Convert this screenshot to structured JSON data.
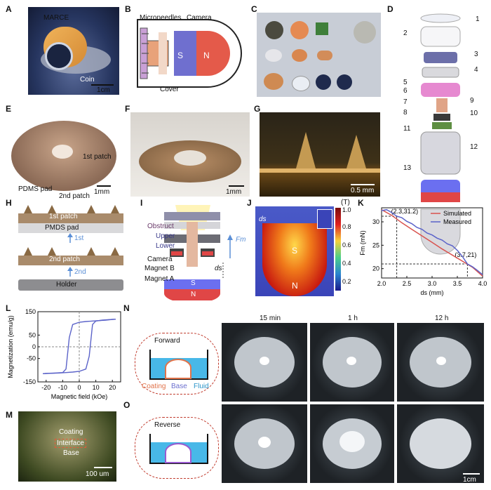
{
  "panels": {
    "A": {
      "letter": "A",
      "marce": "MARCE",
      "coin": "Coin",
      "scale": "1cm"
    },
    "B": {
      "letter": "B",
      "microneedles": "Microneedles",
      "camera": "Camera",
      "s": "S",
      "n": "N",
      "cover": "Cover"
    },
    "C": {
      "letter": "C"
    },
    "D": {
      "letter": "D",
      "parts": [
        "1",
        "2",
        "3",
        "4",
        "5",
        "6",
        "7",
        "8",
        "9",
        "10",
        "11",
        "12",
        "13"
      ]
    },
    "E": {
      "letter": "E",
      "patch1": "1st patch",
      "patch2": "2nd patch",
      "pdms": "PDMS pad",
      "scale": "1mm"
    },
    "F": {
      "letter": "F",
      "scale": "1mm"
    },
    "G": {
      "letter": "G",
      "scale": "0.5 mm"
    },
    "H": {
      "letter": "H",
      "patch1": "1st patch",
      "pmds": "PMDS pad",
      "step1": "1st",
      "patch2": "2nd patch",
      "step2": "2nd",
      "holder": "Holder"
    },
    "I": {
      "letter": "I",
      "obstruct": "Obstruct",
      "upper": "Upper",
      "lower": "Lower",
      "camera": "Camera",
      "magnetB": "Magnet B",
      "magnetA": "Magnet A",
      "s": "S",
      "n": "N",
      "fm": "Fm",
      "ds": "ds"
    },
    "J": {
      "letter": "J",
      "ds": "ds",
      "s": "S",
      "n": "N",
      "unit": "(T)",
      "colorbar_ticks": [
        "1.0",
        "0.8",
        "0.6",
        "0.4",
        "0.2"
      ]
    },
    "M": {
      "letter": "M",
      "coating": "Coating",
      "interface": "Interface",
      "base": "Base",
      "scale": "100 um"
    },
    "N": {
      "letter": "N",
      "mode": "Forward",
      "times": [
        "15 min",
        "1 h",
        "12 h"
      ],
      "coating": "Coating",
      "base": "Base",
      "fluid": "Fluid"
    },
    "O": {
      "letter": "O",
      "mode": "Reverse",
      "scale": "1cm"
    }
  },
  "chart_data": [
    {
      "panel": "K",
      "type": "line",
      "xlabel": "ds (mm)",
      "ylabel": "Fm (mN)",
      "xlim": [
        2.0,
        4.0
      ],
      "ylim": [
        18,
        33
      ],
      "xticks": [
        "2.0",
        "2.5",
        "3.0",
        "3.5",
        "4.0"
      ],
      "yticks": [
        "20",
        "25",
        "30"
      ],
      "legend": "top-right",
      "series": [
        {
          "name": "Simulated",
          "color": "#d9534f",
          "x": [
            2.0,
            2.2,
            2.4,
            2.6,
            2.8,
            3.0,
            3.2,
            3.4,
            3.6,
            3.8,
            4.0
          ],
          "y": [
            32.6,
            31.4,
            29.8,
            28.4,
            27.0,
            25.6,
            24.2,
            22.9,
            21.6,
            20.3,
            18.4
          ]
        },
        {
          "name": "Measured",
          "color": "#5b63c9",
          "x": [
            2.0,
            2.1,
            2.2,
            2.3,
            2.4,
            2.5,
            2.6,
            2.7,
            2.8,
            2.9,
            3.0,
            3.1,
            3.2,
            3.3,
            3.4,
            3.5,
            3.6,
            3.7,
            3.8,
            3.9,
            4.0
          ],
          "y": [
            32.4,
            32.6,
            32.0,
            31.2,
            30.9,
            30.1,
            29.6,
            28.8,
            28.4,
            27.6,
            27.2,
            26.5,
            26.1,
            25.3,
            24.9,
            23.9,
            22.6,
            21.0,
            20.4,
            19.6,
            18.7
          ]
        }
      ],
      "annotations": [
        {
          "label": "(2.3,31.2)",
          "x": 2.3,
          "y": 31.2
        },
        {
          "label": "(3.7,21)",
          "x": 3.7,
          "y": 21
        }
      ]
    },
    {
      "panel": "L",
      "type": "line",
      "xlabel": "Magnetic field (kOe)",
      "ylabel": "Magnetization (emu/g)",
      "xlim": [
        -25,
        25
      ],
      "ylim": [
        -150,
        150
      ],
      "xticks": [
        "-20",
        "-10",
        "0",
        "10",
        "20"
      ],
      "yticks": [
        "150",
        "50",
        "0",
        "-50",
        "-150"
      ],
      "series": [
        {
          "x": [
            -22,
            -18,
            -14,
            -10,
            -8,
            -6,
            -4,
            0,
            4,
            8,
            12,
            16,
            20,
            22,
            20
          ],
          "y": [
            -115,
            -113,
            -112,
            -110,
            -95,
            40,
            95,
            105,
            108,
            110,
            112,
            114,
            117,
            118,
            117
          ]
        },
        {
          "x": [
            22,
            18,
            14,
            10,
            8,
            6,
            4,
            0,
            -4,
            -8,
            -12,
            -16,
            -20,
            -22,
            -20
          ],
          "y": [
            118,
            116,
            114,
            110,
            95,
            -40,
            -95,
            -105,
            -108,
            -110,
            -112,
            -113,
            -114,
            -115,
            -114
          ]
        }
      ]
    }
  ]
}
